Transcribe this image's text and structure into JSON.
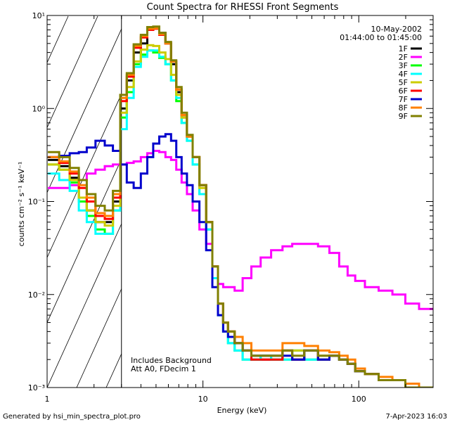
{
  "chart_data": {
    "type": "line",
    "title": "Count Spectra for RHESSI Front Segments",
    "xlabel": "Energy (keV)",
    "ylabel": "counts cm⁻² s⁻¹ keV⁻¹",
    "xscale": "log",
    "yscale": "log",
    "xlim": [
      1,
      300
    ],
    "ylim": [
      0.001,
      10
    ],
    "x_ticks": [
      {
        "value": 1,
        "label": "1"
      },
      {
        "value": 10,
        "label": "10"
      },
      {
        "value": 100,
        "label": "100"
      }
    ],
    "y_ticks": [
      {
        "value": 10,
        "label": "10¹"
      },
      {
        "value": 1,
        "label": "10⁰"
      },
      {
        "value": 0.1,
        "label": "10⁻¹"
      },
      {
        "value": 0.01,
        "label": "10⁻²"
      },
      {
        "value": 0.001,
        "label": "10⁻³"
      }
    ],
    "shaded_region": {
      "x_range": [
        1,
        3
      ],
      "style": "diagonal hatch"
    },
    "legend_position": "top-right",
    "header_lines": [
      "10-May-2002",
      "01:44:00 to 01:45:00"
    ],
    "annotation_lines": [
      "Includes Background",
      "Att A0, FDecim 1"
    ],
    "series": [
      {
        "name": "1F",
        "color": "#000000",
        "x": [
          1.1,
          1.3,
          1.5,
          1.7,
          1.9,
          2.2,
          2.5,
          2.8,
          3.1,
          3.4,
          3.8,
          4.2,
          4.6,
          5.0,
          5.5,
          6.0,
          6.5,
          7.0,
          7.6,
          8.2,
          9.0,
          10.0,
          11.0,
          12.0,
          13.0,
          14.0,
          15.0,
          17.0,
          19.0,
          22.0,
          25.0,
          30.0,
          35.0,
          40.0,
          50.0,
          60.0,
          70.0,
          80.0,
          90.0,
          100.0,
          120.0,
          150.0,
          180.0,
          220.0,
          270.0
        ],
        "y": [
          0.28,
          0.24,
          0.18,
          0.11,
          0.08,
          0.06,
          0.06,
          0.1,
          1.0,
          2.0,
          4.0,
          5.0,
          7.0,
          7.5,
          6.5,
          5.0,
          3.0,
          1.5,
          0.8,
          0.5,
          0.3,
          0.15,
          0.06,
          0.02,
          0.008,
          0.005,
          0.004,
          0.003,
          0.0025,
          0.002,
          0.002,
          0.002,
          0.0025,
          0.002,
          0.0025,
          0.002,
          0.0022,
          0.002,
          0.0018,
          0.0015,
          0.0014,
          0.0012,
          0.0012,
          0.001,
          0.001
        ]
      },
      {
        "name": "2F",
        "color": "#ff00ff",
        "x": [
          1.1,
          1.3,
          1.5,
          1.7,
          1.9,
          2.2,
          2.5,
          2.8,
          3.1,
          3.4,
          3.8,
          4.2,
          4.6,
          5.0,
          5.5,
          6.0,
          6.5,
          7.0,
          7.6,
          8.2,
          9.0,
          10.0,
          11.0,
          12.0,
          13.0,
          14.0,
          15.0,
          17.0,
          19.0,
          22.0,
          25.0,
          30.0,
          35.0,
          40.0,
          50.0,
          60.0,
          70.0,
          80.0,
          90.0,
          100.0,
          120.0,
          150.0,
          180.0,
          220.0,
          270.0
        ],
        "y": [
          0.14,
          0.14,
          0.15,
          0.17,
          0.2,
          0.22,
          0.24,
          0.25,
          0.25,
          0.26,
          0.27,
          0.3,
          0.33,
          0.35,
          0.34,
          0.3,
          0.28,
          0.22,
          0.16,
          0.12,
          0.08,
          0.05,
          0.035,
          0.02,
          0.013,
          0.012,
          0.012,
          0.011,
          0.015,
          0.02,
          0.025,
          0.03,
          0.033,
          0.035,
          0.035,
          0.033,
          0.028,
          0.02,
          0.016,
          0.014,
          0.012,
          0.011,
          0.01,
          0.008,
          0.007
        ]
      },
      {
        "name": "3F",
        "color": "#00ff00",
        "x": [
          1.1,
          1.3,
          1.5,
          1.7,
          1.9,
          2.2,
          2.5,
          2.8,
          3.1,
          3.4,
          3.8,
          4.2,
          4.6,
          5.0,
          5.5,
          6.0,
          6.5,
          7.0,
          7.6,
          8.2,
          9.0,
          10.0,
          11.0,
          12.0,
          13.0,
          14.0,
          15.0,
          17.0,
          19.0,
          22.0,
          25.0,
          30.0,
          35.0,
          40.0,
          50.0,
          60.0,
          70.0,
          80.0,
          90.0,
          100.0,
          120.0,
          150.0,
          180.0,
          220.0,
          270.0
        ],
        "y": [
          0.25,
          0.22,
          0.16,
          0.1,
          0.07,
          0.05,
          0.045,
          0.08,
          0.8,
          1.5,
          3.0,
          3.8,
          4.2,
          4.0,
          3.5,
          3.0,
          2.0,
          1.2,
          0.7,
          0.45,
          0.25,
          0.12,
          0.05,
          0.015,
          0.006,
          0.004,
          0.003,
          0.0025,
          0.002,
          0.002,
          0.0022,
          0.002,
          0.002,
          0.0025,
          0.002,
          0.002,
          0.0022,
          0.002,
          0.0018,
          0.0015,
          0.0014,
          0.0012,
          0.0012,
          0.001,
          0.001
        ]
      },
      {
        "name": "4F",
        "color": "#00ffff",
        "x": [
          1.1,
          1.3,
          1.5,
          1.7,
          1.9,
          2.2,
          2.5,
          2.8,
          3.1,
          3.4,
          3.8,
          4.2,
          4.6,
          5.0,
          5.5,
          6.0,
          6.5,
          7.0,
          7.6,
          8.2,
          9.0,
          10.0,
          11.0,
          12.0,
          13.0,
          14.0,
          15.0,
          17.0,
          19.0,
          22.0,
          25.0,
          30.0,
          35.0,
          40.0,
          50.0,
          60.0,
          70.0,
          80.0,
          90.0,
          100.0,
          120.0,
          150.0,
          180.0,
          220.0,
          270.0
        ],
        "y": [
          0.2,
          0.17,
          0.13,
          0.08,
          0.06,
          0.045,
          0.045,
          0.08,
          0.6,
          1.3,
          2.8,
          3.6,
          4.2,
          4.2,
          3.6,
          3.0,
          2.0,
          1.3,
          0.7,
          0.45,
          0.25,
          0.12,
          0.05,
          0.015,
          0.006,
          0.004,
          0.003,
          0.0025,
          0.002,
          0.002,
          0.0022,
          0.002,
          0.002,
          0.0025,
          0.002,
          0.002,
          0.0022,
          0.002,
          0.0018,
          0.0015,
          0.0014,
          0.0012,
          0.0012,
          0.001,
          0.001
        ]
      },
      {
        "name": "5F",
        "color": "#cccc00",
        "x": [
          1.1,
          1.3,
          1.5,
          1.7,
          1.9,
          2.2,
          2.5,
          2.8,
          3.1,
          3.4,
          3.8,
          4.2,
          4.6,
          5.0,
          5.5,
          6.0,
          6.5,
          7.0,
          7.6,
          8.2,
          9.0,
          10.0,
          11.0,
          12.0,
          13.0,
          14.0,
          15.0,
          17.0,
          19.0,
          22.0,
          25.0,
          30.0,
          35.0,
          40.0,
          50.0,
          60.0,
          70.0,
          80.0,
          90.0,
          100.0,
          120.0,
          150.0,
          180.0,
          220.0,
          270.0
        ],
        "y": [
          0.25,
          0.22,
          0.17,
          0.11,
          0.08,
          0.06,
          0.055,
          0.09,
          0.9,
          1.7,
          3.2,
          4.3,
          4.8,
          4.7,
          4.0,
          3.4,
          2.3,
          1.4,
          0.8,
          0.5,
          0.3,
          0.14,
          0.06,
          0.02,
          0.008,
          0.005,
          0.004,
          0.003,
          0.0025,
          0.0022,
          0.0022,
          0.0022,
          0.0025,
          0.0025,
          0.0025,
          0.0022,
          0.0022,
          0.002,
          0.0018,
          0.0016,
          0.0014,
          0.0012,
          0.0012,
          0.001,
          0.001
        ]
      },
      {
        "name": "6F",
        "color": "#ff0000",
        "x": [
          1.1,
          1.3,
          1.5,
          1.7,
          1.9,
          2.2,
          2.5,
          2.8,
          3.1,
          3.4,
          3.8,
          4.2,
          4.6,
          5.0,
          5.5,
          6.0,
          6.5,
          7.0,
          7.6,
          8.2,
          9.0,
          10.0,
          11.0,
          12.0,
          13.0,
          14.0,
          15.0,
          17.0,
          19.0,
          22.0,
          25.0,
          30.0,
          35.0,
          40.0,
          50.0,
          60.0,
          70.0,
          80.0,
          90.0,
          100.0,
          120.0,
          150.0,
          180.0,
          220.0,
          270.0
        ],
        "y": [
          0.3,
          0.26,
          0.2,
          0.14,
          0.1,
          0.07,
          0.065,
          0.11,
          1.2,
          2.2,
          4.5,
          5.8,
          7.0,
          7.2,
          6.2,
          5.0,
          3.2,
          1.6,
          0.85,
          0.5,
          0.3,
          0.15,
          0.06,
          0.02,
          0.008,
          0.005,
          0.004,
          0.003,
          0.0025,
          0.002,
          0.002,
          0.002,
          0.0025,
          0.002,
          0.0025,
          0.002,
          0.0022,
          0.002,
          0.0018,
          0.0015,
          0.0014,
          0.0012,
          0.0012,
          0.001,
          0.001
        ]
      },
      {
        "name": "7F",
        "color": "#0000cc",
        "x": [
          1.1,
          1.3,
          1.5,
          1.7,
          1.9,
          2.2,
          2.5,
          2.8,
          3.1,
          3.4,
          3.8,
          4.2,
          4.6,
          5.0,
          5.5,
          6.0,
          6.5,
          7.0,
          7.6,
          8.2,
          9.0,
          10.0,
          11.0,
          12.0,
          13.0,
          14.0,
          15.0,
          17.0,
          19.0,
          22.0,
          25.0,
          30.0,
          35.0,
          40.0,
          50.0,
          60.0,
          70.0,
          80.0,
          90.0,
          100.0,
          120.0,
          150.0,
          180.0,
          220.0,
          270.0
        ],
        "y": [
          0.3,
          0.31,
          0.33,
          0.34,
          0.38,
          0.45,
          0.4,
          0.35,
          0.25,
          0.16,
          0.14,
          0.2,
          0.3,
          0.42,
          0.5,
          0.53,
          0.45,
          0.3,
          0.2,
          0.15,
          0.1,
          0.06,
          0.03,
          0.012,
          0.006,
          0.004,
          0.0035,
          0.003,
          0.0025,
          0.0022,
          0.0022,
          0.0022,
          0.0022,
          0.002,
          0.0025,
          0.002,
          0.0022,
          0.002,
          0.0018,
          0.0015,
          0.0014,
          0.0012,
          0.0012,
          0.001,
          0.001
        ]
      },
      {
        "name": "8F",
        "color": "#ff8000",
        "x": [
          1.1,
          1.3,
          1.5,
          1.7,
          1.9,
          2.2,
          2.5,
          2.8,
          3.1,
          3.4,
          3.8,
          4.2,
          4.6,
          5.0,
          5.5,
          6.0,
          6.5,
          7.0,
          7.6,
          8.2,
          9.0,
          10.0,
          11.0,
          12.0,
          13.0,
          14.0,
          15.0,
          17.0,
          19.0,
          22.0,
          25.0,
          30.0,
          35.0,
          40.0,
          50.0,
          60.0,
          70.0,
          80.0,
          90.0,
          100.0,
          120.0,
          150.0,
          180.0,
          220.0,
          270.0
        ],
        "y": [
          0.3,
          0.27,
          0.21,
          0.15,
          0.11,
          0.075,
          0.07,
          0.12,
          1.3,
          2.3,
          4.7,
          6.0,
          7.2,
          7.3,
          6.3,
          5.0,
          3.2,
          1.6,
          0.85,
          0.5,
          0.3,
          0.15,
          0.06,
          0.02,
          0.008,
          0.005,
          0.004,
          0.0035,
          0.003,
          0.0025,
          0.0025,
          0.0025,
          0.003,
          0.003,
          0.0028,
          0.0025,
          0.0024,
          0.0022,
          0.002,
          0.0016,
          0.0014,
          0.0013,
          0.0012,
          0.0011,
          0.001
        ]
      },
      {
        "name": "9F",
        "color": "#808000",
        "x": [
          1.1,
          1.3,
          1.5,
          1.7,
          1.9,
          2.2,
          2.5,
          2.8,
          3.1,
          3.4,
          3.8,
          4.2,
          4.6,
          5.0,
          5.5,
          6.0,
          6.5,
          7.0,
          7.6,
          8.2,
          9.0,
          10.0,
          11.0,
          12.0,
          13.0,
          14.0,
          15.0,
          17.0,
          19.0,
          22.0,
          25.0,
          30.0,
          35.0,
          40.0,
          50.0,
          60.0,
          70.0,
          80.0,
          90.0,
          100.0,
          120.0,
          150.0,
          180.0,
          220.0,
          270.0
        ],
        "y": [
          0.34,
          0.3,
          0.23,
          0.17,
          0.12,
          0.09,
          0.08,
          0.13,
          1.4,
          2.4,
          4.9,
          6.2,
          7.5,
          7.6,
          6.5,
          5.2,
          3.3,
          1.7,
          0.9,
          0.52,
          0.3,
          0.15,
          0.06,
          0.02,
          0.008,
          0.005,
          0.004,
          0.003,
          0.0025,
          0.0022,
          0.0022,
          0.0022,
          0.0025,
          0.0022,
          0.0025,
          0.0022,
          0.0022,
          0.002,
          0.0018,
          0.0015,
          0.0014,
          0.0012,
          0.0012,
          0.001,
          0.001
        ]
      }
    ]
  },
  "footer": {
    "generated_by": "Generated by hsi_min_spectra_plot.pro",
    "timestamp": "7-Apr-2023 16:03"
  }
}
